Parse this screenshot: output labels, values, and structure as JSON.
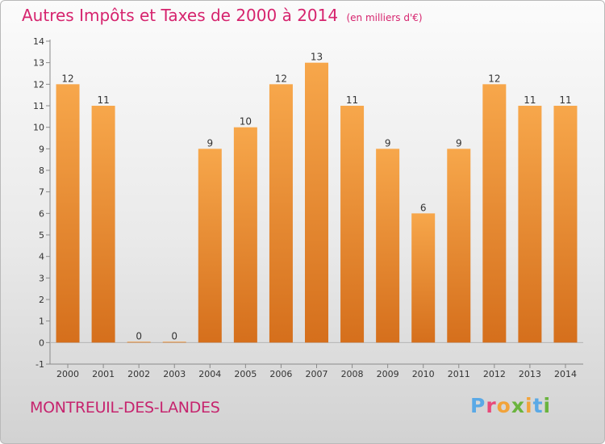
{
  "header": {
    "title": "Autres Impôts et Taxes de 2000 à 2014",
    "subtitle": "(en milliers d'€)"
  },
  "footer": {
    "town": "MONTREUIL-DES-LANDES",
    "logo_letters": [
      "P",
      "r",
      "o",
      "x",
      "i",
      "t",
      "i"
    ]
  },
  "colors": {
    "title": "#d6246e",
    "bar_top": "#f7a74b",
    "bar_bottom": "#d56f1c",
    "logo": [
      "#5aa9e6",
      "#e84a7a",
      "#f2a33a",
      "#6ab43e",
      "#f2a33a",
      "#5aa9e6",
      "#6ab43e"
    ]
  },
  "chart_data": {
    "type": "bar",
    "categories": [
      "2000",
      "2001",
      "2002",
      "2003",
      "2004",
      "2005",
      "2006",
      "2007",
      "2008",
      "2009",
      "2010",
      "2011",
      "2012",
      "2013",
      "2014"
    ],
    "values": [
      12,
      11,
      0,
      0,
      9,
      10,
      12,
      13,
      11,
      9,
      6,
      9,
      12,
      11,
      11
    ],
    "ylim": [
      -1,
      14
    ],
    "yticks": [
      "-1",
      "0",
      "1",
      "2",
      "3",
      "4",
      "5",
      "6",
      "7",
      "8",
      "9",
      "10",
      "11",
      "12",
      "13",
      "14"
    ],
    "grid": false,
    "legend": "none"
  }
}
